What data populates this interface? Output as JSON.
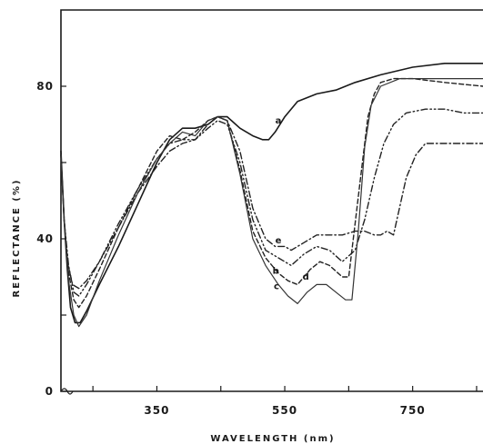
{
  "chart_data": {
    "type": "line",
    "title": "",
    "xlabel": "WAVELENGTH (nm)",
    "ylabel": "REFLECTANCE (%)",
    "xlim": [
      200,
      860
    ],
    "ylim": [
      0,
      100
    ],
    "x_ticks": [
      250,
      350,
      450,
      550,
      650,
      750,
      850
    ],
    "x_tick_labels": [
      {
        "value": 350,
        "label": "350"
      },
      {
        "value": 550,
        "label": "550"
      },
      {
        "value": 750,
        "label": "750"
      }
    ],
    "y_ticks": [
      0,
      20,
      40,
      60,
      80
    ],
    "y_tick_labels": [
      {
        "value": 0,
        "label": "0"
      },
      {
        "value": 40,
        "label": "40"
      },
      {
        "value": 80,
        "label": "80"
      }
    ],
    "grid": false,
    "legend": "none",
    "series": [
      {
        "name": "a",
        "style": "solid",
        "label_at": [
          540,
          71
        ],
        "points": [
          [
            200,
            63
          ],
          [
            205,
            45
          ],
          [
            210,
            32
          ],
          [
            215,
            22
          ],
          [
            222,
            18
          ],
          [
            230,
            18
          ],
          [
            240,
            21
          ],
          [
            260,
            28
          ],
          [
            290,
            38
          ],
          [
            320,
            49
          ],
          [
            350,
            60
          ],
          [
            370,
            66
          ],
          [
            390,
            69
          ],
          [
            410,
            69
          ],
          [
            430,
            70
          ],
          [
            445,
            72
          ],
          [
            460,
            72
          ],
          [
            480,
            69
          ],
          [
            500,
            67
          ],
          [
            515,
            66
          ],
          [
            525,
            66
          ],
          [
            535,
            68
          ],
          [
            550,
            72
          ],
          [
            570,
            76
          ],
          [
            600,
            78
          ],
          [
            630,
            79
          ],
          [
            660,
            81
          ],
          [
            700,
            83
          ],
          [
            750,
            85
          ],
          [
            800,
            86
          ],
          [
            860,
            86
          ]
        ]
      },
      {
        "name": "e",
        "style": "dash-dot",
        "label_at": [
          540,
          39.5
        ],
        "points": [
          [
            200,
            62
          ],
          [
            205,
            45
          ],
          [
            210,
            34
          ],
          [
            218,
            28
          ],
          [
            228,
            27
          ],
          [
            240,
            29
          ],
          [
            260,
            34
          ],
          [
            290,
            43
          ],
          [
            320,
            52
          ],
          [
            350,
            59
          ],
          [
            370,
            63
          ],
          [
            390,
            65
          ],
          [
            410,
            66
          ],
          [
            430,
            70
          ],
          [
            445,
            72
          ],
          [
            460,
            71
          ],
          [
            480,
            63
          ],
          [
            500,
            48
          ],
          [
            520,
            40
          ],
          [
            535,
            38
          ],
          [
            550,
            38
          ],
          [
            560,
            37
          ],
          [
            580,
            39
          ],
          [
            600,
            41
          ],
          [
            620,
            41
          ],
          [
            640,
            41
          ],
          [
            660,
            42
          ],
          [
            675,
            42
          ],
          [
            690,
            41
          ],
          [
            700,
            41
          ],
          [
            710,
            42
          ],
          [
            720,
            41
          ],
          [
            740,
            56
          ],
          [
            755,
            62
          ],
          [
            770,
            65
          ],
          [
            800,
            65
          ],
          [
            830,
            65
          ],
          [
            860,
            65
          ]
        ]
      },
      {
        "name": "d",
        "style": "dash-dot-dot",
        "label_at": [
          583,
          30
        ],
        "points": [
          [
            200,
            62
          ],
          [
            205,
            45
          ],
          [
            212,
            33
          ],
          [
            220,
            26
          ],
          [
            228,
            25
          ],
          [
            240,
            28
          ],
          [
            260,
            34
          ],
          [
            290,
            44
          ],
          [
            320,
            53
          ],
          [
            350,
            61
          ],
          [
            370,
            65
          ],
          [
            390,
            66
          ],
          [
            410,
            66
          ],
          [
            430,
            69
          ],
          [
            445,
            71
          ],
          [
            460,
            70
          ],
          [
            480,
            60
          ],
          [
            500,
            45
          ],
          [
            520,
            37
          ],
          [
            540,
            35
          ],
          [
            560,
            33
          ],
          [
            580,
            36
          ],
          [
            600,
            38
          ],
          [
            620,
            37
          ],
          [
            640,
            34
          ],
          [
            660,
            37
          ],
          [
            675,
            45
          ],
          [
            690,
            56
          ],
          [
            705,
            65
          ],
          [
            720,
            70
          ],
          [
            740,
            73
          ],
          [
            770,
            74
          ],
          [
            800,
            74
          ],
          [
            830,
            73
          ],
          [
            860,
            73
          ]
        ]
      },
      {
        "name": "b",
        "style": "dashed",
        "label_at": [
          536,
          31.5
        ],
        "points": [
          [
            200,
            62
          ],
          [
            205,
            45
          ],
          [
            212,
            31
          ],
          [
            220,
            24
          ],
          [
            228,
            22
          ],
          [
            240,
            25
          ],
          [
            260,
            32
          ],
          [
            290,
            43
          ],
          [
            320,
            53
          ],
          [
            350,
            63
          ],
          [
            370,
            67
          ],
          [
            390,
            66
          ],
          [
            410,
            68
          ],
          [
            430,
            71
          ],
          [
            445,
            72
          ],
          [
            460,
            71
          ],
          [
            480,
            58
          ],
          [
            500,
            42
          ],
          [
            520,
            35
          ],
          [
            540,
            31
          ],
          [
            555,
            29
          ],
          [
            570,
            28
          ],
          [
            590,
            32
          ],
          [
            605,
            34
          ],
          [
            620,
            33
          ],
          [
            640,
            30
          ],
          [
            650,
            30
          ],
          [
            660,
            44
          ],
          [
            670,
            58
          ],
          [
            680,
            72
          ],
          [
            690,
            78
          ],
          [
            700,
            81
          ],
          [
            720,
            82
          ],
          [
            750,
            82
          ],
          [
            800,
            81
          ],
          [
            860,
            80
          ]
        ]
      },
      {
        "name": "c",
        "style": "solid-light",
        "label_at": [
          537,
          27.5
        ],
        "points": [
          [
            200,
            62
          ],
          [
            205,
            45
          ],
          [
            212,
            29
          ],
          [
            220,
            20
          ],
          [
            228,
            17
          ],
          [
            240,
            20
          ],
          [
            260,
            29
          ],
          [
            290,
            41
          ],
          [
            320,
            52
          ],
          [
            350,
            61
          ],
          [
            370,
            65
          ],
          [
            390,
            68
          ],
          [
            410,
            67
          ],
          [
            430,
            71
          ],
          [
            445,
            72
          ],
          [
            460,
            71
          ],
          [
            480,
            57
          ],
          [
            500,
            40
          ],
          [
            520,
            33
          ],
          [
            540,
            28
          ],
          [
            555,
            25
          ],
          [
            570,
            23
          ],
          [
            585,
            26
          ],
          [
            600,
            28
          ],
          [
            615,
            28
          ],
          [
            630,
            26
          ],
          [
            645,
            24
          ],
          [
            655,
            24
          ],
          [
            665,
            42
          ],
          [
            675,
            64
          ],
          [
            685,
            75
          ],
          [
            700,
            80
          ],
          [
            730,
            82
          ],
          [
            760,
            82
          ],
          [
            800,
            82
          ],
          [
            860,
            82
          ]
        ]
      }
    ]
  }
}
